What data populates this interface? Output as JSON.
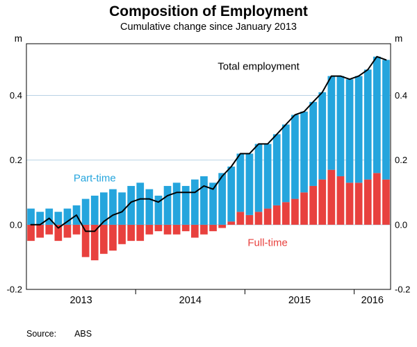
{
  "header": {
    "title": "Composition of Employment",
    "subtitle": "Cumulative change since January 2013"
  },
  "footer": {
    "source_label": "Source:",
    "source_value": "ABS"
  },
  "chart_data": {
    "type": "bar",
    "stacked": true,
    "title": "Composition of Employment",
    "subtitle": "Cumulative change since January 2013",
    "unit_label": "m",
    "ylim": [
      -0.2,
      0.56
    ],
    "yticks": [
      -0.2,
      0.0,
      0.2,
      0.4
    ],
    "ytick_labels": [
      "-0.2",
      "0.0",
      "0.2",
      "0.4"
    ],
    "grid": true,
    "x": [
      "2013-01",
      "2013-02",
      "2013-03",
      "2013-04",
      "2013-05",
      "2013-06",
      "2013-07",
      "2013-08",
      "2013-09",
      "2013-10",
      "2013-11",
      "2013-12",
      "2014-01",
      "2014-02",
      "2014-03",
      "2014-04",
      "2014-05",
      "2014-06",
      "2014-07",
      "2014-08",
      "2014-09",
      "2014-10",
      "2014-11",
      "2014-12",
      "2015-01",
      "2015-02",
      "2015-03",
      "2015-04",
      "2015-05",
      "2015-06",
      "2015-07",
      "2015-08",
      "2015-09",
      "2015-10",
      "2015-11",
      "2015-12",
      "2016-01",
      "2016-02",
      "2016-03",
      "2016-04"
    ],
    "xtick_years": [
      {
        "label": "2013",
        "start_index": 0,
        "month_count": 12
      },
      {
        "label": "2014",
        "start_index": 12,
        "month_count": 12
      },
      {
        "label": "2015",
        "start_index": 24,
        "month_count": 12
      },
      {
        "label": "2016",
        "start_index": 36,
        "month_count": 4
      }
    ],
    "year_boundary_indices": [
      12,
      24,
      36
    ],
    "series": [
      {
        "name": "Part-time",
        "color": "#25a5dd",
        "values": [
          0.05,
          0.04,
          0.05,
          0.04,
          0.05,
          0.06,
          0.08,
          0.09,
          0.1,
          0.11,
          0.1,
          0.12,
          0.13,
          0.11,
          0.09,
          0.12,
          0.13,
          0.12,
          0.14,
          0.15,
          0.13,
          0.16,
          0.17,
          0.18,
          0.19,
          0.21,
          0.2,
          0.22,
          0.24,
          0.26,
          0.25,
          0.26,
          0.27,
          0.29,
          0.31,
          0.32,
          0.33,
          0.34,
          0.36,
          0.37
        ]
      },
      {
        "name": "Full-time",
        "color": "#e8413e",
        "values": [
          -0.05,
          -0.04,
          -0.03,
          -0.05,
          -0.04,
          -0.03,
          -0.1,
          -0.11,
          -0.09,
          -0.08,
          -0.06,
          -0.05,
          -0.05,
          -0.03,
          -0.02,
          -0.03,
          -0.03,
          -0.02,
          -0.04,
          -0.03,
          -0.02,
          -0.01,
          0.01,
          0.04,
          0.03,
          0.04,
          0.05,
          0.06,
          0.07,
          0.08,
          0.1,
          0.12,
          0.14,
          0.17,
          0.15,
          0.13,
          0.13,
          0.14,
          0.16,
          0.14
        ]
      }
    ],
    "line_series": {
      "name": "Total employment",
      "color": "#000000",
      "values": [
        0.0,
        0.0,
        0.02,
        -0.01,
        0.01,
        0.03,
        -0.02,
        -0.02,
        0.01,
        0.03,
        0.04,
        0.07,
        0.08,
        0.08,
        0.07,
        0.09,
        0.1,
        0.1,
        0.1,
        0.12,
        0.11,
        0.15,
        0.18,
        0.22,
        0.22,
        0.25,
        0.25,
        0.28,
        0.31,
        0.34,
        0.35,
        0.38,
        0.41,
        0.46,
        0.46,
        0.45,
        0.46,
        0.48,
        0.52,
        0.51
      ]
    },
    "annotations": [
      {
        "text": "Total employment",
        "month_index": 25,
        "value": 0.49,
        "color": "#000000",
        "anchor": "middle"
      },
      {
        "text": "Part-time",
        "month_index": 7,
        "value": 0.145,
        "color": "#25a5dd",
        "anchor": "middle"
      },
      {
        "text": "Full-time",
        "month_index": 26,
        "value": -0.055,
        "color": "#e8413e",
        "anchor": "middle"
      }
    ],
    "colors": {
      "gridline": "#b9d2e4",
      "frame": "#000000"
    }
  }
}
